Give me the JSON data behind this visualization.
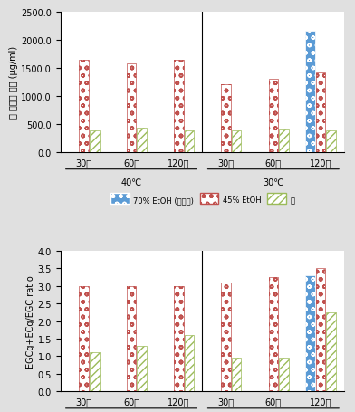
{
  "chart1": {
    "ylabel": "좀 카테킨 함량 (μg/ml)",
    "ylim": [
      0,
      2500
    ],
    "yticks": [
      0.0,
      500.0,
      1000.0,
      1500.0,
      2000.0,
      2500.0
    ],
    "ytick_labels": [
      "0.0",
      "500.0",
      "1000.0",
      "1500.0",
      "2000.0",
      "2500.0"
    ],
    "groups": [
      "30분",
      "60분",
      "120분",
      "30분",
      "60분",
      "120분"
    ],
    "series": {
      "70%EtOH": [
        0,
        0,
        0,
        0,
        0,
        2150
      ],
      "45%EtOH": [
        1650,
        1570,
        1650,
        1210,
        1300,
        1410
      ],
      "mul": [
        390,
        440,
        390,
        380,
        410,
        380
      ]
    },
    "colors": {
      "70%EtOH": "#5B9BD5",
      "45%EtOH": "#C0504D",
      "mul": "#9BBB59"
    },
    "legend_labels": [
      "70% EtOH (대조군)",
      "45% EtOH",
      "물"
    ]
  },
  "chart2": {
    "ylabel": "EGCg+ECg/EGC ratio",
    "ylim": [
      0,
      4.0
    ],
    "yticks": [
      0.0,
      0.5,
      1.0,
      1.5,
      2.0,
      2.5,
      3.0,
      3.5,
      4.0
    ],
    "ytick_labels": [
      "0.0",
      "0.5",
      "1.0",
      "1.5",
      "2.0",
      "2.5",
      "3.0",
      "3.5",
      "4.0"
    ],
    "groups": [
      "30분",
      "60분",
      "120분",
      "30분",
      "60분",
      "120분"
    ],
    "series": {
      "70%EtOH": [
        0,
        0,
        0,
        0,
        0,
        3.3
      ],
      "45%EtOH": [
        3.0,
        3.0,
        3.0,
        3.1,
        3.25,
        3.5
      ],
      "mul": [
        1.1,
        1.3,
        1.6,
        0.97,
        0.97,
        2.25
      ]
    },
    "colors": {
      "70%EtOH": "#5B9BD5",
      "45%EtOH": "#C0504D",
      "mul": "#9BBB59"
    },
    "legend_labels": [
      "70% EtOH (대조군)",
      "45% EtOH",
      "물"
    ]
  },
  "outer_bg": "#E0E0E0",
  "inner_bg": "#FFFFFF",
  "temp_labels": [
    "40℃",
    "30℃"
  ]
}
